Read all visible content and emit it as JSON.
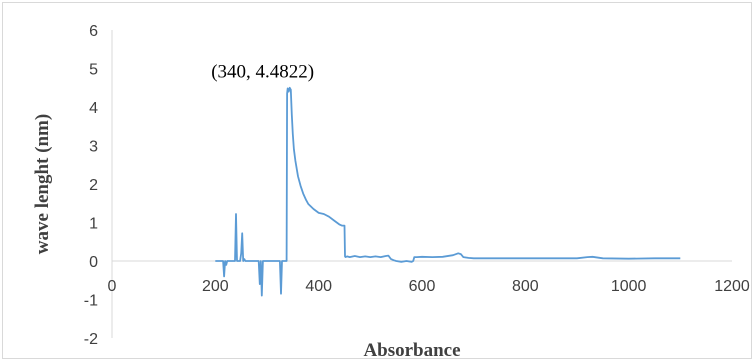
{
  "chart_data": {
    "type": "line",
    "xlabel": "Absorbance",
    "ylabel": "wave lenght (nm)",
    "xlim": [
      0,
      1200
    ],
    "ylim": [
      -2,
      6
    ],
    "x_ticks": [
      "0",
      "200",
      "400",
      "600",
      "800",
      "1000",
      "1200"
    ],
    "y_ticks": [
      "-2",
      "-1",
      "0",
      "1",
      "2",
      "3",
      "4",
      "5",
      "6"
    ],
    "grid": false,
    "legend": "none",
    "annotation": {
      "text": "(340, 4.4822)",
      "x": 340,
      "y": 4.4822
    },
    "series": [
      {
        "color": "#5b9bd5",
        "x": [
          200,
          210,
          215,
          217,
          219,
          221,
          223,
          226,
          230,
          235,
          238,
          240,
          242,
          245,
          248,
          250,
          252,
          254,
          256,
          258,
          262,
          268,
          275,
          280,
          284,
          286,
          288,
          290,
          292,
          295,
          300,
          310,
          320,
          325,
          327,
          329,
          331,
          333,
          336,
          338,
          339,
          340,
          342,
          344,
          346,
          348,
          350,
          352,
          355,
          360,
          365,
          370,
          375,
          380,
          390,
          400,
          410,
          420,
          430,
          440,
          445,
          450,
          451,
          452,
          455,
          460,
          470,
          480,
          490,
          500,
          510,
          520,
          530,
          535,
          540,
          545,
          550,
          560,
          570,
          580,
          583,
          585,
          590,
          600,
          620,
          640,
          660,
          670,
          675,
          680,
          690,
          700,
          750,
          800,
          850,
          900,
          920,
          930,
          950,
          1000,
          1050,
          1100
        ],
        "y": [
          0,
          0,
          0,
          -0.4,
          0,
          -0.1,
          0,
          0,
          0,
          0,
          0,
          1.22,
          0,
          0,
          0,
          0.2,
          0.72,
          0,
          0.05,
          0,
          0,
          0,
          0,
          0,
          0,
          -0.6,
          0,
          -0.9,
          0,
          0,
          0,
          0,
          0,
          0,
          -0.85,
          0,
          0,
          0,
          0,
          0,
          4.35,
          4.4822,
          4.4,
          4.5,
          4.45,
          3.8,
          3.3,
          2.9,
          2.6,
          2.2,
          1.95,
          1.75,
          1.6,
          1.48,
          1.35,
          1.25,
          1.22,
          1.15,
          1.05,
          0.95,
          0.92,
          0.92,
          0.12,
          0.1,
          0.12,
          0.1,
          0.13,
          0.1,
          0.12,
          0.1,
          0.12,
          0.1,
          0.13,
          0.14,
          0.05,
          0.02,
          0,
          -0.02,
          0,
          -0.02,
          0,
          0.1,
          0.1,
          0.11,
          0.1,
          0.11,
          0.15,
          0.2,
          0.18,
          0.1,
          0.08,
          0.07,
          0.07,
          0.07,
          0.07,
          0.07,
          0.1,
          0.11,
          0.07,
          0.06,
          0.07,
          0.07
        ]
      }
    ]
  }
}
